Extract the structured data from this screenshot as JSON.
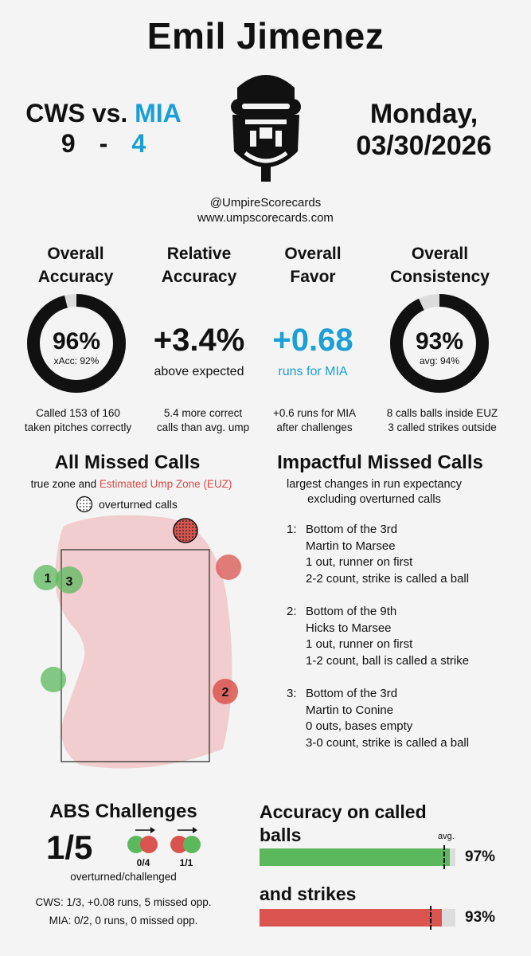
{
  "header": {
    "umpire_name": "Emil Jimenez",
    "away_team": "CWS",
    "vs": "vs.",
    "home_team": "MIA",
    "away_score": "9",
    "dash": "-",
    "home_score": "4",
    "day": "Monday,",
    "date": "03/30/2026",
    "handle": "@UmpireScorecards",
    "website": "www.umpscorecards.com"
  },
  "colors": {
    "mia_blue": "#1a9fd6",
    "green": "#5cb85c",
    "red": "#d9534f",
    "euz_pink": "#f1cdcf"
  },
  "stats": {
    "accuracy": {
      "heading1": "Overall",
      "heading2": "Accuracy",
      "value": "96%",
      "sub": "xAcc: 92%",
      "detail1": "Called 153 of 160",
      "detail2": "taken pitches correctly",
      "fraction": 0.96
    },
    "relative": {
      "heading1": "Relative",
      "heading2": "Accuracy",
      "value": "+3.4%",
      "sub": "above expected",
      "detail1": "5.4 more correct",
      "detail2": "calls than avg. ump"
    },
    "favor": {
      "heading1": "Overall",
      "heading2": "Favor",
      "value": "+0.68",
      "sub": "runs for MIA",
      "detail1": "+0.6 runs for MIA",
      "detail2": "after challenges"
    },
    "consistency": {
      "heading1": "Overall",
      "heading2": "Consistency",
      "value": "93%",
      "sub": "avg: 94%",
      "detail1": "8 calls balls inside EUZ",
      "detail2": "3 called strikes outside",
      "fraction": 0.93
    }
  },
  "missed": {
    "title": "All Missed Calls",
    "legend_prefix": "true zone and ",
    "legend_euz": "Estimated Ump Zone (EUZ)",
    "overturned_label": "overturned calls",
    "labels": [
      "1",
      "3",
      "2"
    ]
  },
  "impactful": {
    "title": "Impactful Missed Calls",
    "subtitle1": "largest changes in run expectancy",
    "subtitle2": "excluding overturned calls",
    "items": [
      {
        "num": "1:",
        "l1": "Bottom of the 3rd",
        "l2": "Martin to Marsee",
        "l3": "1 out, runner on first",
        "l4": "2-2 count, strike is called a ball"
      },
      {
        "num": "2:",
        "l1": "Bottom of the 9th",
        "l2": "Hicks to Marsee",
        "l3": "1 out, runner on first",
        "l4": "1-2 count, ball is called a strike"
      },
      {
        "num": "3:",
        "l1": "Bottom of the 3rd",
        "l2": "Martin to Conine",
        "l3": "0 outs, bases empty",
        "l4": "3-0 count, strike is called a ball"
      }
    ]
  },
  "abs": {
    "title": "ABS Challenges",
    "value": "1/5",
    "left_fraction": "0/4",
    "right_fraction": "1/1",
    "caption": "overturned/challenged",
    "cws_line": "CWS: 1/3, +0.08 runs, 5 missed opp.",
    "mia_line": "MIA: 0/2, 0 runs, 0 missed opp."
  },
  "accuracy_bars": {
    "title1": "Accuracy on called",
    "title2": "balls",
    "avg_label": "avg.",
    "balls_value": "97%",
    "balls_fraction": 0.97,
    "balls_avg_fraction": 0.94,
    "strikes_title": "and strikes",
    "strikes_value": "93%",
    "strikes_fraction": 0.93,
    "strikes_avg_fraction": 0.87
  }
}
